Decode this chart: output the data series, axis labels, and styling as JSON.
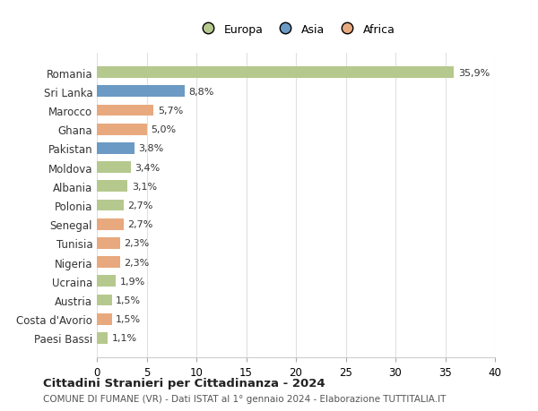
{
  "countries": [
    "Romania",
    "Sri Lanka",
    "Marocco",
    "Ghana",
    "Pakistan",
    "Moldova",
    "Albania",
    "Polonia",
    "Senegal",
    "Tunisia",
    "Nigeria",
    "Ucraina",
    "Austria",
    "Costa d'Avorio",
    "Paesi Bassi"
  ],
  "values": [
    35.9,
    8.8,
    5.7,
    5.0,
    3.8,
    3.4,
    3.1,
    2.7,
    2.7,
    2.3,
    2.3,
    1.9,
    1.5,
    1.5,
    1.1
  ],
  "labels": [
    "35,9%",
    "8,8%",
    "5,7%",
    "5,0%",
    "3,8%",
    "3,4%",
    "3,1%",
    "2,7%",
    "2,7%",
    "2,3%",
    "2,3%",
    "1,9%",
    "1,5%",
    "1,5%",
    "1,1%"
  ],
  "continents": [
    "Europa",
    "Asia",
    "Africa",
    "Africa",
    "Asia",
    "Europa",
    "Europa",
    "Europa",
    "Africa",
    "Africa",
    "Africa",
    "Europa",
    "Europa",
    "Africa",
    "Europa"
  ],
  "colors": {
    "Europa": "#b5c98e",
    "Asia": "#6b9ac4",
    "Africa": "#e8a97e"
  },
  "title": "Cittadini Stranieri per Cittadinanza - 2024",
  "subtitle": "COMUNE DI FUMANE (VR) - Dati ISTAT al 1° gennaio 2024 - Elaborazione TUTTITALIA.IT",
  "xlim": [
    0,
    40
  ],
  "xticks": [
    0,
    5,
    10,
    15,
    20,
    25,
    30,
    35,
    40
  ],
  "background_color": "#ffffff",
  "grid_color": "#e0e0e0",
  "bar_height": 0.6
}
